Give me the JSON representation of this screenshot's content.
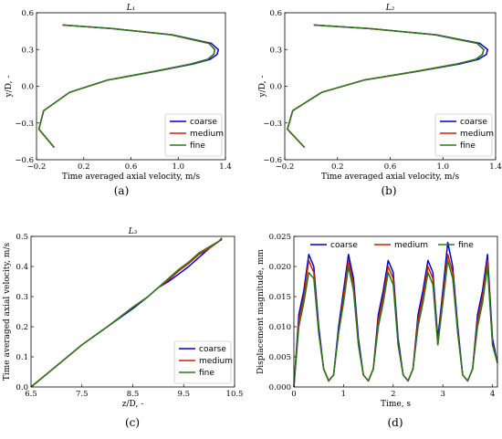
{
  "colors": {
    "coarse": "#0000cc",
    "medium": "#cc2200",
    "fine": "#2a7a1a"
  },
  "chart_data": [
    {
      "id": "a",
      "type": "line",
      "title": "L₁",
      "caption": "(a)",
      "xlabel": "Time averaged axial velocity, m/s",
      "ylabel": "y/D, -",
      "xlim": [
        -0.2,
        1.4
      ],
      "ylim": [
        -0.6,
        0.6
      ],
      "xticks": [
        -0.2,
        0.2,
        0.6,
        1.0,
        1.4
      ],
      "xtick_labels": [
        "−0.2",
        "0.2",
        "0.6",
        "1.0",
        "1.4"
      ],
      "yticks": [
        -0.6,
        -0.3,
        0.0,
        0.3,
        0.6
      ],
      "ytick_labels": [
        "−0.6",
        "−0.3",
        "0.0",
        "0.3",
        "0.6"
      ],
      "legend": "bottom-right",
      "series": [
        {
          "name": "coarse",
          "x": [
            -0.05,
            -0.18,
            -0.14,
            0.08,
            0.4,
            0.8,
            1.12,
            1.27,
            1.33,
            1.34,
            1.28,
            0.95,
            0.45,
            0.02
          ],
          "y": [
            -0.5,
            -0.35,
            -0.2,
            -0.05,
            0.05,
            0.12,
            0.18,
            0.22,
            0.26,
            0.3,
            0.35,
            0.42,
            0.47,
            0.5
          ]
        },
        {
          "name": "medium",
          "x": [
            -0.05,
            -0.18,
            -0.14,
            0.08,
            0.4,
            0.79,
            1.1,
            1.25,
            1.3,
            1.31,
            1.26,
            0.94,
            0.45,
            0.02
          ],
          "y": [
            -0.5,
            -0.35,
            -0.2,
            -0.05,
            0.05,
            0.12,
            0.18,
            0.22,
            0.26,
            0.3,
            0.35,
            0.42,
            0.47,
            0.5
          ]
        },
        {
          "name": "fine",
          "x": [
            -0.05,
            -0.18,
            -0.14,
            0.08,
            0.4,
            0.79,
            1.1,
            1.25,
            1.3,
            1.31,
            1.26,
            0.94,
            0.45,
            0.02
          ],
          "y": [
            -0.5,
            -0.35,
            -0.2,
            -0.05,
            0.05,
            0.12,
            0.18,
            0.22,
            0.26,
            0.3,
            0.35,
            0.42,
            0.47,
            0.5
          ]
        }
      ]
    },
    {
      "id": "b",
      "type": "line",
      "title": "L₂",
      "caption": "(b)",
      "xlabel": "Time averaged axial velocity, m/s",
      "ylabel": "y/D, -",
      "xlim": [
        -0.2,
        1.4
      ],
      "ylim": [
        -0.6,
        0.6
      ],
      "xticks": [
        -0.2,
        0.2,
        0.6,
        1.0,
        1.4
      ],
      "xtick_labels": [
        "−0.2",
        "0.2",
        "0.6",
        "1.0",
        "1.4"
      ],
      "yticks": [
        -0.6,
        -0.3,
        0.0,
        0.3,
        0.6
      ],
      "ytick_labels": [
        "−0.6",
        "−0.3",
        "0.0",
        "0.3",
        "0.6"
      ],
      "legend": "bottom-right",
      "series": [
        {
          "name": "coarse",
          "x": [
            -0.05,
            -0.18,
            -0.14,
            0.08,
            0.4,
            0.8,
            1.12,
            1.27,
            1.33,
            1.34,
            1.28,
            0.95,
            0.45,
            0.02
          ],
          "y": [
            -0.5,
            -0.35,
            -0.2,
            -0.05,
            0.05,
            0.12,
            0.18,
            0.22,
            0.26,
            0.3,
            0.35,
            0.42,
            0.47,
            0.5
          ]
        },
        {
          "name": "medium",
          "x": [
            -0.05,
            -0.18,
            -0.14,
            0.08,
            0.4,
            0.79,
            1.1,
            1.25,
            1.3,
            1.31,
            1.26,
            0.94,
            0.45,
            0.02
          ],
          "y": [
            -0.5,
            -0.35,
            -0.2,
            -0.05,
            0.05,
            0.12,
            0.18,
            0.22,
            0.26,
            0.3,
            0.35,
            0.42,
            0.47,
            0.5
          ]
        },
        {
          "name": "fine",
          "x": [
            -0.05,
            -0.18,
            -0.14,
            0.08,
            0.4,
            0.79,
            1.1,
            1.25,
            1.3,
            1.31,
            1.26,
            0.94,
            0.45,
            0.02
          ],
          "y": [
            -0.5,
            -0.35,
            -0.2,
            -0.05,
            0.05,
            0.12,
            0.18,
            0.22,
            0.26,
            0.3,
            0.35,
            0.42,
            0.47,
            0.5
          ]
        }
      ]
    },
    {
      "id": "c",
      "type": "line",
      "title": "L₃",
      "caption": "(c)",
      "xlabel": "z/D, -",
      "ylabel": "Time averaged axial velocity, m/s",
      "xlim": [
        6.5,
        10.5
      ],
      "ylim": [
        0.0,
        0.5
      ],
      "xticks": [
        6.5,
        7.5,
        8.5,
        9.5,
        10.5
      ],
      "xtick_labels": [
        "6.5",
        "7.5",
        "8.5",
        "9.5",
        "10.5"
      ],
      "yticks": [
        0.0,
        0.1,
        0.2,
        0.3,
        0.4,
        0.5
      ],
      "ytick_labels": [
        "0.0",
        "0.1",
        "0.2",
        "0.3",
        "0.4",
        "0.5"
      ],
      "legend": "bottom-right",
      "series": [
        {
          "name": "coarse",
          "x": [
            6.5,
            7.0,
            7.5,
            8.0,
            8.5,
            8.8,
            9.0,
            9.2,
            9.4,
            9.6,
            9.8,
            10.0,
            10.2,
            10.25
          ],
          "y": [
            0.0,
            0.07,
            0.14,
            0.2,
            0.26,
            0.3,
            0.33,
            0.35,
            0.375,
            0.4,
            0.43,
            0.46,
            0.485,
            0.49
          ]
        },
        {
          "name": "medium",
          "x": [
            6.5,
            7.0,
            7.5,
            8.0,
            8.5,
            8.8,
            9.0,
            9.2,
            9.4,
            9.6,
            9.8,
            10.0,
            10.2,
            10.25
          ],
          "y": [
            0.0,
            0.07,
            0.14,
            0.2,
            0.265,
            0.3,
            0.33,
            0.355,
            0.385,
            0.41,
            0.44,
            0.46,
            0.485,
            0.495
          ]
        },
        {
          "name": "fine",
          "x": [
            6.5,
            7.0,
            7.5,
            8.0,
            8.5,
            8.8,
            9.0,
            9.2,
            9.4,
            9.6,
            9.8,
            10.0,
            10.2,
            10.25
          ],
          "y": [
            0.0,
            0.07,
            0.14,
            0.2,
            0.265,
            0.3,
            0.33,
            0.36,
            0.39,
            0.415,
            0.445,
            0.465,
            0.485,
            0.495
          ]
        }
      ]
    },
    {
      "id": "d",
      "type": "line",
      "title": "",
      "caption": "(d)",
      "xlabel": "Time, s",
      "ylabel": "Displacement magnitude, mm",
      "xlim": [
        0,
        4.1
      ],
      "ylim": [
        0.0,
        0.025
      ],
      "xticks": [
        0,
        1,
        2,
        3,
        4
      ],
      "xtick_labels": [
        "0",
        "1",
        "2",
        "3",
        "4"
      ],
      "yticks": [
        0.0,
        0.005,
        0.01,
        0.015,
        0.02,
        0.025
      ],
      "ytick_labels": [
        "0.000",
        "0.005",
        "0.010",
        "0.015",
        "0.020",
        "0.025"
      ],
      "legend": "top",
      "series": [
        {
          "name": "coarse",
          "x": [
            0,
            0.1,
            0.2,
            0.3,
            0.4,
            0.5,
            0.6,
            0.7,
            0.8,
            0.9,
            1.0,
            1.1,
            1.2,
            1.3,
            1.4,
            1.5,
            1.6,
            1.7,
            1.8,
            1.9,
            2.0,
            2.1,
            2.2,
            2.3,
            2.4,
            2.5,
            2.6,
            2.7,
            2.8,
            2.9,
            3.0,
            3.1,
            3.2,
            3.3,
            3.4,
            3.5,
            3.6,
            3.7,
            3.8,
            3.9,
            4.0,
            4.1
          ],
          "y": [
            0.0,
            0.012,
            0.016,
            0.022,
            0.02,
            0.01,
            0.003,
            0.001,
            0.002,
            0.01,
            0.016,
            0.022,
            0.018,
            0.008,
            0.002,
            0.001,
            0.003,
            0.012,
            0.016,
            0.021,
            0.019,
            0.008,
            0.002,
            0.001,
            0.003,
            0.012,
            0.016,
            0.021,
            0.019,
            0.008,
            0.016,
            0.024,
            0.02,
            0.01,
            0.002,
            0.001,
            0.003,
            0.012,
            0.016,
            0.022,
            0.008,
            0.004
          ]
        },
        {
          "name": "medium",
          "x": [
            0,
            0.1,
            0.2,
            0.3,
            0.4,
            0.5,
            0.6,
            0.7,
            0.8,
            0.9,
            1.0,
            1.1,
            1.2,
            1.3,
            1.4,
            1.5,
            1.6,
            1.7,
            1.8,
            1.9,
            2.0,
            2.1,
            2.2,
            2.3,
            2.4,
            2.5,
            2.6,
            2.7,
            2.8,
            2.9,
            3.0,
            3.1,
            3.2,
            3.3,
            3.4,
            3.5,
            3.6,
            3.7,
            3.8,
            3.9,
            4.0,
            4.1
          ],
          "y": [
            0.0,
            0.011,
            0.015,
            0.021,
            0.019,
            0.009,
            0.003,
            0.001,
            0.002,
            0.009,
            0.015,
            0.021,
            0.017,
            0.007,
            0.002,
            0.001,
            0.003,
            0.011,
            0.015,
            0.02,
            0.018,
            0.007,
            0.002,
            0.001,
            0.003,
            0.011,
            0.015,
            0.02,
            0.018,
            0.007,
            0.015,
            0.022,
            0.019,
            0.009,
            0.002,
            0.001,
            0.003,
            0.011,
            0.015,
            0.021,
            0.007,
            0.004
          ]
        },
        {
          "name": "fine",
          "x": [
            0,
            0.1,
            0.2,
            0.3,
            0.4,
            0.5,
            0.6,
            0.7,
            0.8,
            0.9,
            1.0,
            1.1,
            1.2,
            1.3,
            1.4,
            1.5,
            1.6,
            1.7,
            1.8,
            1.9,
            2.0,
            2.1,
            2.2,
            2.3,
            2.4,
            2.5,
            2.6,
            2.7,
            2.8,
            2.9,
            3.0,
            3.1,
            3.2,
            3.3,
            3.4,
            3.5,
            3.6,
            3.7,
            3.8,
            3.9,
            4.0,
            4.1
          ],
          "y": [
            0.0,
            0.01,
            0.014,
            0.019,
            0.018,
            0.009,
            0.003,
            0.001,
            0.002,
            0.009,
            0.014,
            0.02,
            0.016,
            0.007,
            0.002,
            0.001,
            0.003,
            0.01,
            0.014,
            0.019,
            0.017,
            0.007,
            0.002,
            0.001,
            0.003,
            0.01,
            0.014,
            0.019,
            0.017,
            0.007,
            0.014,
            0.021,
            0.018,
            0.009,
            0.002,
            0.001,
            0.003,
            0.01,
            0.014,
            0.02,
            0.007,
            0.004
          ]
        }
      ]
    }
  ]
}
